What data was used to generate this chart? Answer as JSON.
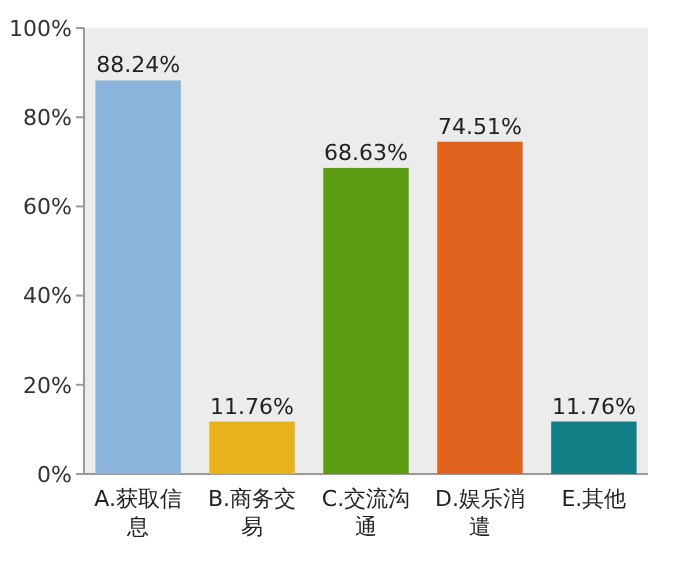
{
  "chart_data": {
    "type": "bar",
    "categories": [
      "A.获取信息",
      "B.商务交易",
      "C.交流沟通",
      "D.娱乐消遣",
      "E.其他"
    ],
    "values": [
      88.24,
      11.76,
      68.63,
      74.51,
      11.76
    ],
    "value_labels": [
      "88.24%",
      "11.76%",
      "68.63%",
      "74.51%",
      "11.76%"
    ],
    "colors": [
      "#8ab4dc",
      "#e8b21c",
      "#5c9c12",
      "#e0631e",
      "#127f86"
    ],
    "ylim": [
      0,
      100
    ],
    "yticks": [
      {
        "value": 0,
        "label": "0%"
      },
      {
        "value": 20,
        "label": "20%"
      },
      {
        "value": 40,
        "label": "40%"
      },
      {
        "value": 60,
        "label": "60%"
      },
      {
        "value": 80,
        "label": "80%"
      },
      {
        "value": 100,
        "label": "100%"
      }
    ],
    "grid": false
  }
}
